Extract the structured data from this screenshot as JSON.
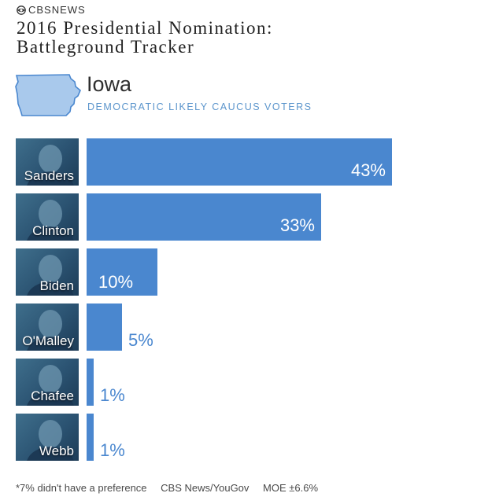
{
  "header": {
    "brand": "CBSNEWS",
    "title_line1": "2016 Presidential Nomination:",
    "title_line2": "Battleground Tracker"
  },
  "state": {
    "name": "Iowa",
    "subtitle": "DEMOCRATIC LIKELY CAUCUS VOTERS"
  },
  "colors": {
    "bar": "#4a87cf",
    "accent": "#5b95cc"
  },
  "chart_data": {
    "type": "bar",
    "orientation": "horizontal",
    "title": "2016 Presidential Nomination: Battleground Tracker",
    "subtitle": "Iowa — Democratic Likely Caucus Voters",
    "categories": [
      "Sanders",
      "Clinton",
      "Biden",
      "O'Malley",
      "Chafee",
      "Webb"
    ],
    "values": [
      43,
      33,
      10,
      5,
      1,
      1
    ],
    "value_labels": [
      "43%",
      "33%",
      "10%",
      "5%",
      "1%",
      "1%"
    ],
    "unit": "%",
    "xlim": [
      0,
      50
    ]
  },
  "footer": {
    "note": "*7% didn't have a preference",
    "source": "CBS News/YouGov",
    "moe": "MOE ±6.6%"
  }
}
